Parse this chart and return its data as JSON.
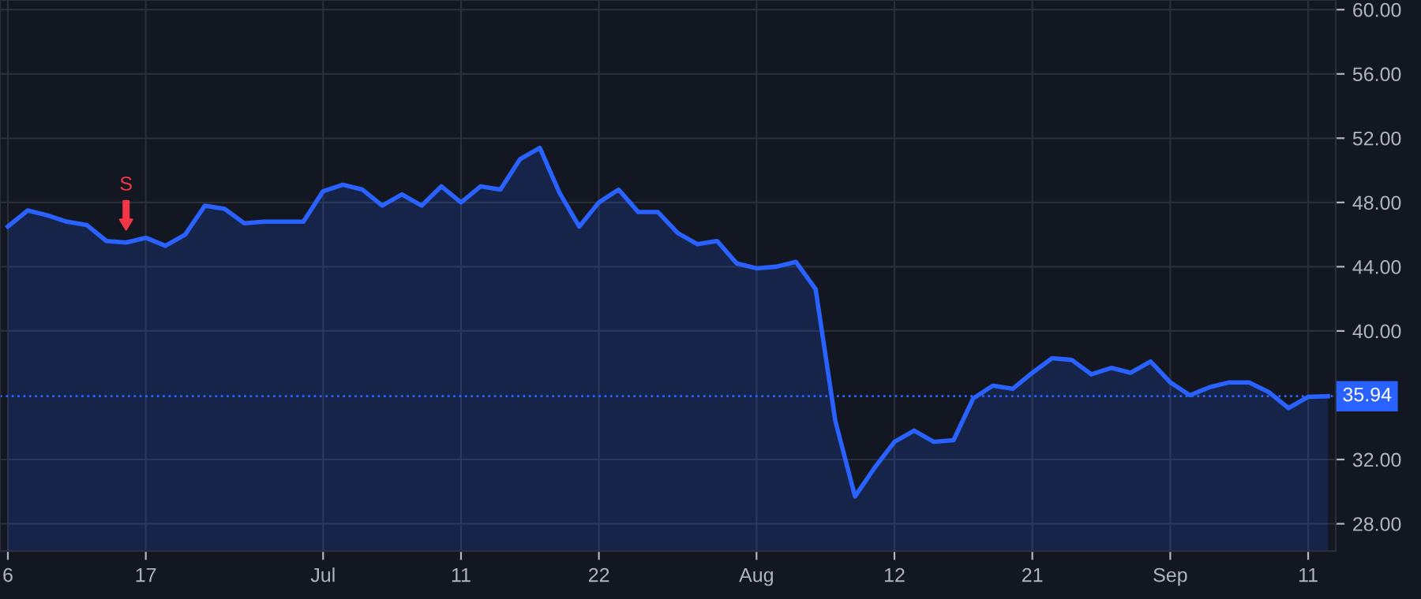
{
  "chart_data": {
    "type": "area",
    "categories": [
      "6",
      null,
      null,
      null,
      null,
      null,
      null,
      "17",
      null,
      null,
      null,
      null,
      null,
      null,
      null,
      null,
      "Jul",
      null,
      null,
      null,
      null,
      null,
      null,
      "11",
      null,
      null,
      null,
      null,
      null,
      null,
      "22",
      null,
      null,
      null,
      null,
      null,
      null,
      null,
      "Aug",
      null,
      null,
      null,
      null,
      null,
      null,
      "12",
      null,
      null,
      null,
      null,
      null,
      null,
      "21",
      null,
      null,
      null,
      null,
      null,
      null,
      "Sep",
      null,
      null,
      null,
      null,
      null,
      null,
      "11",
      null
    ],
    "series": [
      {
        "color": "#2962ff",
        "values": [
          46.5,
          47.5,
          47.2,
          46.8,
          46.6,
          45.6,
          45.5,
          45.8,
          45.3,
          46.0,
          47.8,
          47.6,
          46.7,
          46.8,
          46.8,
          46.8,
          48.7,
          49.1,
          48.8,
          47.8,
          48.5,
          47.8,
          49.0,
          48.0,
          49.0,
          48.8,
          50.7,
          51.4,
          48.6,
          46.5,
          48.0,
          48.8,
          47.4,
          47.4,
          46.1,
          45.4,
          45.6,
          44.2,
          43.9,
          44.0,
          44.3,
          42.6,
          34.4,
          29.7,
          31.5,
          33.1,
          33.8,
          33.1,
          33.2,
          35.8,
          36.6,
          36.4,
          37.4,
          38.3,
          38.2,
          37.3,
          37.7,
          37.4,
          38.1,
          36.8,
          36.0,
          36.5,
          36.8,
          36.8,
          36.2,
          35.2,
          35.9,
          35.94
        ]
      }
    ],
    "ylim": [
      26.3,
      60.6
    ],
    "yticks": [
      {
        "value": 28,
        "label": "28.00"
      },
      {
        "value": 32,
        "label": "32.00"
      },
      {
        "value": 40,
        "label": "40.00"
      },
      {
        "value": 44,
        "label": "44.00"
      },
      {
        "value": 48,
        "label": "48.00"
      },
      {
        "value": 52,
        "label": "52.00"
      },
      {
        "value": 56,
        "label": "56.00"
      },
      {
        "value": 60,
        "label": "60.00"
      }
    ],
    "ref_lines": [
      {
        "axis": "y",
        "value": 35.94,
        "label": "35.94",
        "color": "#2962ff",
        "line_style": "dotted"
      }
    ],
    "annotations": [
      {
        "text": "S",
        "y": 45.5
      }
    ],
    "grid": true
  }
}
